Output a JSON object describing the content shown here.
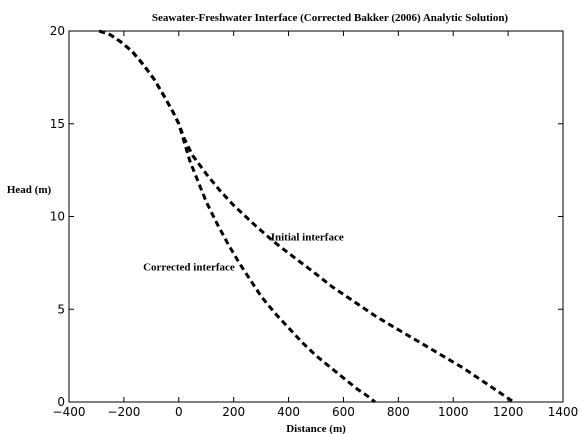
{
  "chart_data": {
    "type": "line",
    "title": "Seawater-Freshwater Interface (Corrected Bakker (2006) Analytic Solution)",
    "xlabel": "Distance (m)",
    "ylabel": "Head (m)",
    "xlim": [
      -400,
      1400
    ],
    "ylim": [
      0,
      20
    ],
    "xticks": [
      "−400",
      "−200",
      "0",
      "200",
      "400",
      "600",
      "800",
      "1000",
      "1200",
      "1400"
    ],
    "yticks": [
      "0",
      "5",
      "10",
      "15",
      "20"
    ],
    "grid": false,
    "legend": "none",
    "series": [
      {
        "x": [
          -290,
          -250,
          -210,
          -170,
          -130,
          -90,
          -50,
          -20,
          0,
          20,
          50,
          100,
          150,
          200,
          280,
          350,
          420,
          500,
          560,
          640,
          720,
          800,
          880,
          960,
          1040,
          1110,
          1170,
          1220
        ],
        "y": [
          20,
          19.8,
          19.4,
          18.9,
          18.2,
          17.4,
          16.4,
          15.6,
          15.0,
          14.2,
          13.3,
          12.3,
          11.4,
          10.6,
          9.5,
          8.6,
          7.8,
          6.9,
          6.2,
          5.4,
          4.6,
          3.9,
          3.2,
          2.5,
          1.8,
          1.1,
          0.5,
          0
        ]
      },
      {
        "x": [
          -290,
          -250,
          -210,
          -170,
          -130,
          -90,
          -50,
          -20,
          0,
          20,
          40,
          70,
          100,
          140,
          180,
          220,
          260,
          300,
          350,
          400,
          450,
          500,
          550,
          600,
          650,
          690,
          715
        ],
        "y": [
          20,
          19.8,
          19.4,
          18.9,
          18.2,
          17.4,
          16.4,
          15.6,
          15.0,
          14.0,
          13.0,
          11.9,
          10.8,
          9.6,
          8.5,
          7.5,
          6.6,
          5.7,
          4.8,
          4.0,
          3.2,
          2.5,
          1.9,
          1.3,
          0.7,
          0.3,
          0
        ]
      }
    ],
    "annotations": [
      {
        "text": "Initial interface",
        "x": 335,
        "y": 8.7
      },
      {
        "text": "Corrected interface",
        "x": -130,
        "y": 7.1
      }
    ]
  }
}
